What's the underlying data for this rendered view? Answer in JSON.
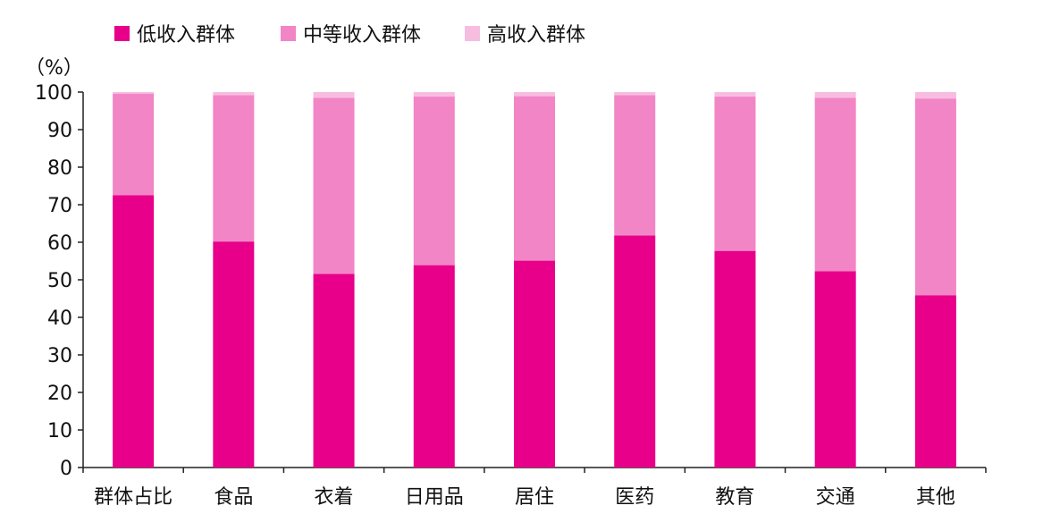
{
  "chart_data": {
    "type": "bar",
    "stacked": true,
    "categories": [
      "群体占比",
      "食品",
      "衣着",
      "日用品",
      "居住",
      "医药",
      "教育",
      "交通",
      "其他"
    ],
    "series": [
      {
        "name": "低收入群体",
        "color": "#e8008a",
        "values": [
          72.5,
          60.2,
          51.6,
          53.9,
          55.1,
          61.8,
          57.7,
          52.3,
          45.9
        ]
      },
      {
        "name": "中等收入群体",
        "color": "#f285c6",
        "values": [
          27.1,
          39.0,
          46.9,
          44.9,
          43.8,
          37.4,
          41.1,
          46.2,
          52.4
        ]
      },
      {
        "name": "高收入群体",
        "color": "#f7bde0",
        "values": [
          0.4,
          0.8,
          1.5,
          1.2,
          1.1,
          0.8,
          1.2,
          1.5,
          1.7
        ]
      }
    ],
    "ylabel": "（%）",
    "ylim": [
      0,
      100
    ],
    "yticks": [
      0,
      10,
      20,
      30,
      40,
      50,
      60,
      70,
      80,
      90,
      100
    ],
    "grid": false,
    "legend": "top-left"
  }
}
